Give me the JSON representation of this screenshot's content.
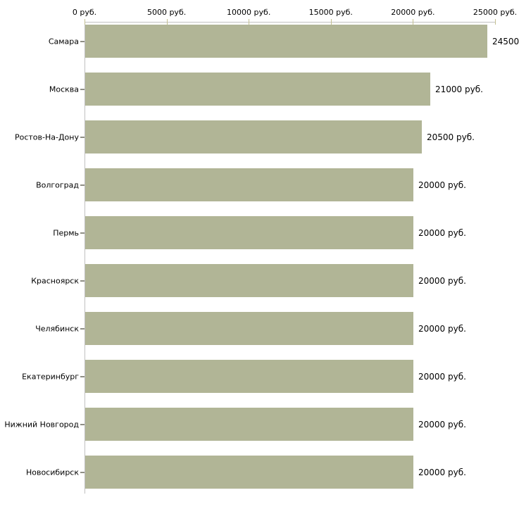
{
  "chart_data": {
    "type": "bar",
    "orientation": "horizontal",
    "title": "",
    "xlabel": "",
    "ylabel": "",
    "grid": false,
    "legend": false,
    "x_axis": {
      "min": 0,
      "max": 25000,
      "tick_values": [
        0,
        5000,
        10000,
        15000,
        20000,
        25000
      ],
      "tick_labels": [
        "0 руб.",
        "5000 руб.",
        "10000 руб.",
        "15000 руб.",
        "20000 руб.",
        "25000 руб."
      ]
    },
    "categories": [
      "Самара",
      "Москва",
      "Ростов-На-Дону",
      "Волгоград",
      "Пермь",
      "Красноярск",
      "Челябинск",
      "Екатеринбург",
      "Нижний Новгород",
      "Новосибирск"
    ],
    "values": [
      24500,
      21000,
      20500,
      20000,
      20000,
      20000,
      20000,
      20000,
      20000,
      20000
    ],
    "value_labels": [
      "24500",
      "21000 руб.",
      "20500 руб.",
      "20000 руб.",
      "20000 руб.",
      "20000 руб.",
      "20000 руб.",
      "20000 руб.",
      "20000 руб.",
      "20000 руб."
    ],
    "colors": {
      "background": "#ffffff",
      "bar_fill": "#b1b596",
      "axis_line": "#c0c0c0",
      "x_tick_mark": "#c5c192",
      "category_tick_mark": "#8f8f86",
      "text": "#000000"
    }
  }
}
